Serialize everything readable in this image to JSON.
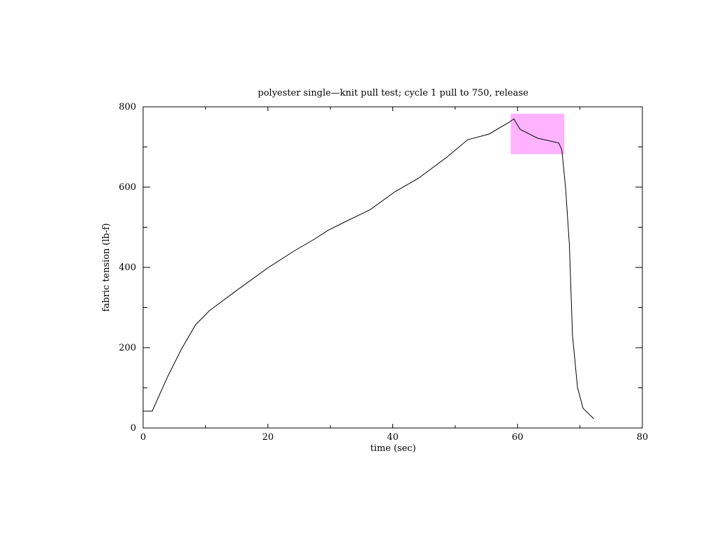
{
  "chart_data": {
    "type": "line",
    "title": "polyester single—knit pull test; cycle 1 pull to 750, release",
    "x_label": "time (sec)",
    "y_label": "fabric tension (lb-f)",
    "xlim": [
      0,
      80
    ],
    "xticks": [
      0,
      20,
      40,
      60,
      80
    ],
    "xminor": [
      10,
      30,
      50,
      70
    ],
    "ylim": [
      0,
      800
    ],
    "yticks": [
      0,
      200,
      400,
      600,
      800
    ],
    "yminor": [
      100,
      300,
      500,
      700
    ],
    "highlight": {
      "color": "#ffb3ff",
      "xlim": [
        58.9,
        67.5
      ],
      "ylim": [
        682,
        783
      ]
    },
    "series": [
      {
        "color": "#000000",
        "x": [
          0,
          1.45,
          3.9,
          6.15,
          8.4,
          10.6,
          15.1,
          20.1,
          24.1,
          27.4,
          29.6,
          31.9,
          36.4,
          40.3,
          44.2,
          48.7,
          52,
          55.4,
          58.7,
          59.4,
          60.4,
          63.2,
          66.6,
          67.1,
          67.7,
          68.3,
          68.8,
          69.6,
          70.5,
          72.2
        ],
        "values": [
          42,
          42,
          127,
          197,
          257,
          292,
          344,
          400,
          440,
          470,
          492,
          510,
          544,
          588,
          623,
          675,
          718,
          732,
          762,
          770,
          744,
          722,
          710,
          692,
          597,
          457,
          231,
          101,
          49,
          23
        ]
      }
    ]
  }
}
